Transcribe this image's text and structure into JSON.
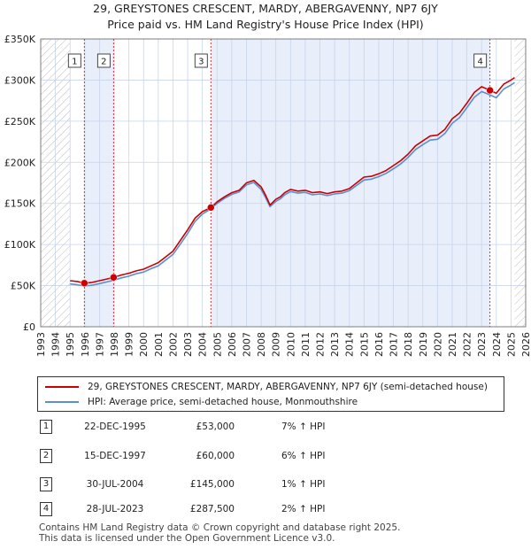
{
  "title": {
    "line1": "29, GREYSTONES CRESCENT, MARDY, ABERGAVENNY, NP7 6JY",
    "line2": "Price paid vs. HM Land Registry's House Price Index (HPI)"
  },
  "colors": {
    "property_line": "#cc0000",
    "hpi_line": "#5b8fd0",
    "shade": "#e8eefa",
    "hatch": "#bbbbbb",
    "grid": "#c9d4ea",
    "marker_line": "#d02020"
  },
  "chart_data": {
    "type": "line",
    "title": "Price paid vs. HM Land Registry's House Price Index (HPI)",
    "xlabel": "",
    "ylabel": "",
    "xlim": [
      1993,
      2026
    ],
    "ylim": [
      0,
      350000
    ],
    "x_ticks": [
      "1993",
      "1994",
      "1995",
      "1996",
      "1997",
      "1998",
      "1999",
      "2000",
      "2001",
      "2002",
      "2003",
      "2004",
      "2005",
      "2006",
      "2007",
      "2008",
      "2009",
      "2010",
      "2011",
      "2012",
      "2013",
      "2014",
      "2015",
      "2016",
      "2017",
      "2018",
      "2019",
      "2020",
      "2021",
      "2022",
      "2023",
      "2024",
      "2025",
      "2026"
    ],
    "y_ticks": [
      {
        "value": 0,
        "label": "£0"
      },
      {
        "value": 50000,
        "label": "£50K"
      },
      {
        "value": 100000,
        "label": "£100K"
      },
      {
        "value": 150000,
        "label": "£150K"
      },
      {
        "value": 200000,
        "label": "£200K"
      },
      {
        "value": 250000,
        "label": "£250K"
      },
      {
        "value": 300000,
        "label": "£300K"
      },
      {
        "value": 350000,
        "label": "£350K"
      }
    ],
    "data_range": [
      1995.0,
      2025.25
    ],
    "shaded_spans": [
      [
        1995.97,
        1997.96
      ],
      [
        2004.58,
        2023.57
      ]
    ],
    "series": [
      {
        "name": "29, GREYSTONES CRESCENT, MARDY, ABERGAVENNY, NP7 6JY (semi-detached house)",
        "color": "#cc0000",
        "x": [
          1995.0,
          1995.5,
          1995.97,
          1996.5,
          1997.0,
          1997.5,
          1997.96,
          1998.5,
          1999.0,
          1999.5,
          2000.0,
          2000.5,
          2001.0,
          2001.5,
          2002.0,
          2002.5,
          2003.0,
          2003.5,
          2004.0,
          2004.58,
          2005.0,
          2005.5,
          2006.0,
          2006.5,
          2007.0,
          2007.5,
          2008.0,
          2008.3,
          2008.6,
          2009.0,
          2009.3,
          2009.6,
          2010.0,
          2010.5,
          2011.0,
          2011.5,
          2012.0,
          2012.5,
          2013.0,
          2013.5,
          2014.0,
          2014.5,
          2015.0,
          2015.5,
          2016.0,
          2016.5,
          2017.0,
          2017.5,
          2018.0,
          2018.5,
          2019.0,
          2019.5,
          2020.0,
          2020.5,
          2021.0,
          2021.5,
          2022.0,
          2022.5,
          2023.0,
          2023.57,
          2024.0,
          2024.5,
          2025.0,
          2025.25
        ],
        "values": [
          56000,
          55000,
          53000,
          54000,
          56000,
          58000,
          60000,
          63000,
          65000,
          68000,
          70000,
          74000,
          78000,
          85000,
          92000,
          105000,
          118000,
          132000,
          140000,
          145000,
          152000,
          158000,
          163000,
          166000,
          175000,
          178000,
          170000,
          160000,
          148000,
          155000,
          158000,
          163000,
          167000,
          165000,
          166000,
          163000,
          164000,
          162000,
          164000,
          165000,
          168000,
          175000,
          182000,
          183000,
          186000,
          190000,
          196000,
          202000,
          210000,
          220000,
          226000,
          232000,
          233000,
          240000,
          253000,
          260000,
          272000,
          285000,
          292000,
          287500,
          284000,
          295000,
          300000,
          303000
        ]
      },
      {
        "name": "HPI: Average price, semi-detached house, Monmouthshire",
        "color": "#5b8fd0",
        "x": [
          1995.0,
          1995.5,
          1995.97,
          1996.5,
          1997.0,
          1997.5,
          1997.96,
          1998.5,
          1999.0,
          1999.5,
          2000.0,
          2000.5,
          2001.0,
          2001.5,
          2002.0,
          2002.5,
          2003.0,
          2003.5,
          2004.0,
          2004.58,
          2005.0,
          2005.5,
          2006.0,
          2006.5,
          2007.0,
          2007.5,
          2008.0,
          2008.3,
          2008.6,
          2009.0,
          2009.3,
          2009.6,
          2010.0,
          2010.5,
          2011.0,
          2011.5,
          2012.0,
          2012.5,
          2013.0,
          2013.5,
          2014.0,
          2014.5,
          2015.0,
          2015.5,
          2016.0,
          2016.5,
          2017.0,
          2017.5,
          2018.0,
          2018.5,
          2019.0,
          2019.5,
          2020.0,
          2020.5,
          2021.0,
          2021.5,
          2022.0,
          2022.5,
          2023.0,
          2023.57,
          2024.0,
          2024.5,
          2025.0,
          2025.25
        ],
        "values": [
          52000,
          51000,
          49500,
          50500,
          52500,
          54500,
          56500,
          59500,
          61500,
          64500,
          66500,
          70500,
          74000,
          81000,
          88000,
          100500,
          113500,
          128000,
          137000,
          143500,
          150000,
          156000,
          161000,
          164000,
          172500,
          175500,
          167000,
          157000,
          146000,
          152500,
          155500,
          160500,
          164500,
          162500,
          163500,
          160500,
          161500,
          159500,
          161500,
          162500,
          165500,
          172000,
          178500,
          179500,
          182500,
          186500,
          192000,
          198000,
          206000,
          215500,
          221500,
          227000,
          228000,
          235000,
          247500,
          254500,
          266500,
          279000,
          286000,
          282000,
          278500,
          289000,
          294000,
          297000
        ]
      }
    ],
    "sales": [
      {
        "label": "1",
        "x": 1995.97,
        "value": 53000
      },
      {
        "label": "2",
        "x": 1997.96,
        "value": 60000
      },
      {
        "label": "3",
        "x": 2004.58,
        "value": 145000
      },
      {
        "label": "4",
        "x": 2023.57,
        "value": 287500
      }
    ]
  },
  "legend": {
    "property": "29, GREYSTONES CRESCENT, MARDY, ABERGAVENNY, NP7 6JY (semi-detached house)",
    "hpi": "HPI: Average price, semi-detached house, Monmouthshire"
  },
  "transactions": [
    {
      "num": "1",
      "date": "22-DEC-1995",
      "price": "£53,000",
      "hpi": "7% ↑ HPI"
    },
    {
      "num": "2",
      "date": "15-DEC-1997",
      "price": "£60,000",
      "hpi": "6% ↑ HPI"
    },
    {
      "num": "3",
      "date": "30-JUL-2004",
      "price": "£145,000",
      "hpi": "1% ↑ HPI"
    },
    {
      "num": "4",
      "date": "28-JUL-2023",
      "price": "£287,500",
      "hpi": "2% ↑ HPI"
    }
  ],
  "footer": {
    "line1": "Contains HM Land Registry data © Crown copyright and database right 2025.",
    "line2": "This data is licensed under the Open Government Licence v3.0."
  }
}
